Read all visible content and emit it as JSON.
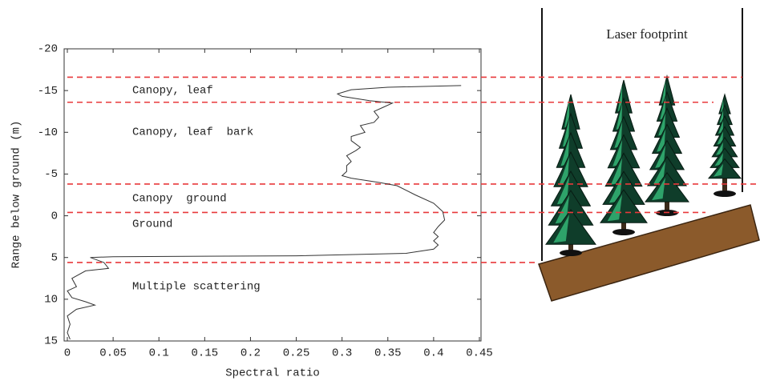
{
  "chart_data": {
    "type": "line",
    "xlabel": "Spectral ratio",
    "ylabel": "Range below ground (m)",
    "xlim": [
      0,
      0.45
    ],
    "xticks": [
      0,
      0.05,
      0.1,
      0.15,
      0.2,
      0.25,
      0.3,
      0.35,
      0.4,
      0.45
    ],
    "ylim": [
      -20,
      15
    ],
    "yticks": [
      -20,
      -15,
      -10,
      -5,
      0,
      5,
      10,
      15
    ],
    "y_inverted": true,
    "series": [
      {
        "color": "#333333",
        "x": [
          0.43,
          0.35,
          0.31,
          0.295,
          0.3,
          0.33,
          0.355,
          0.345,
          0.335,
          0.34,
          0.335,
          0.32,
          0.325,
          0.31,
          0.31,
          0.32,
          0.315,
          0.305,
          0.31,
          0.305,
          0.305,
          0.3,
          0.31,
          0.34,
          0.36,
          0.38,
          0.4,
          0.41,
          0.412,
          0.405,
          0.4,
          0.405,
          0.4,
          0.405,
          0.4,
          0.37,
          0.25,
          0.05,
          0.025,
          0.04,
          0.045,
          0.02,
          0.005,
          0.01,
          0,
          0.005,
          0.02,
          0.03,
          0.01,
          0,
          0.003,
          0,
          0.003
        ],
        "values": [
          -15.6,
          -15.4,
          -15.1,
          -14.6,
          -14.3,
          -13.8,
          -13.5,
          -13.0,
          -12.5,
          -11.8,
          -11.2,
          -10.8,
          -10.0,
          -9.5,
          -9.0,
          -8.2,
          -7.8,
          -7.2,
          -6.5,
          -6.0,
          -5.3,
          -4.8,
          -4.5,
          -4.0,
          -3.6,
          -2.5,
          -1.5,
          -0.5,
          0.5,
          1.3,
          2.0,
          2.5,
          3.0,
          3.5,
          4.0,
          4.5,
          4.8,
          4.9,
          5.0,
          5.6,
          6.3,
          6.6,
          7.5,
          8.5,
          9.0,
          9.8,
          10.3,
          10.7,
          11.2,
          12,
          13,
          14,
          14.8
        ]
      }
    ],
    "boundaries": [
      -16.6,
      -13.6,
      -3.8,
      -0.4,
      5.6
    ],
    "boundary_color": "#e8393b",
    "annotations": [
      "Canopy, leaf",
      "Canopy, leaf  bark",
      "Canopy  ground",
      "Ground",
      "Multiple scattering"
    ],
    "illustration_label": "Laser footprint"
  }
}
